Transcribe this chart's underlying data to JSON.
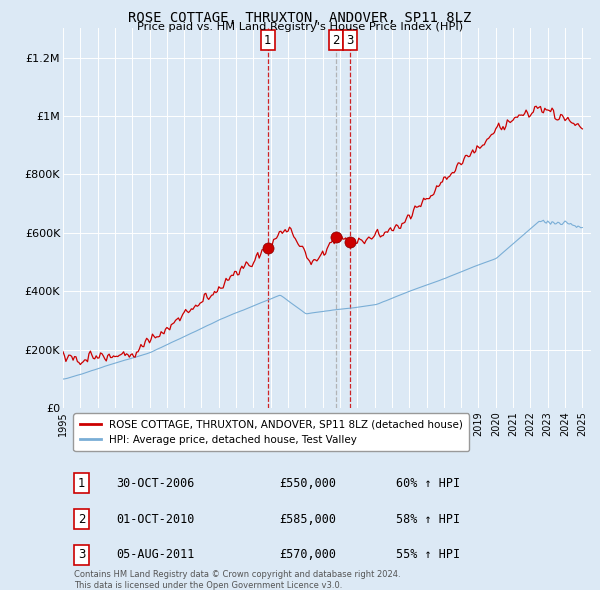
{
  "title": "ROSE COTTAGE, THRUXTON, ANDOVER, SP11 8LZ",
  "subtitle": "Price paid vs. HM Land Registry's House Price Index (HPI)",
  "background_color": "#dce9f5",
  "plot_bg_color": "#dce9f5",
  "bottom_bg_color": "#ffffff",
  "ylim": [
    0,
    1300000
  ],
  "yticks": [
    0,
    200000,
    400000,
    600000,
    800000,
    1000000,
    1200000
  ],
  "ytick_labels": [
    "£0",
    "£200K",
    "£400K",
    "£600K",
    "£800K",
    "£1M",
    "£1.2M"
  ],
  "x_start_year": 1995,
  "x_end_year": 2025,
  "legend_line1": "ROSE COTTAGE, THRUXTON, ANDOVER, SP11 8LZ (detached house)",
  "legend_line2": "HPI: Average price, detached house, Test Valley",
  "legend_color1": "#cc0000",
  "legend_color2": "#7aaed6",
  "transactions": [
    {
      "id": 1,
      "date": "30-OCT-2006",
      "year": 2006.83,
      "price": 550000,
      "hpi_pct": "60%",
      "vline_style": "red_dash"
    },
    {
      "id": 2,
      "date": "01-OCT-2010",
      "year": 2010.75,
      "price": 585000,
      "hpi_pct": "58%",
      "vline_style": "grey_dash"
    },
    {
      "id": 3,
      "date": "05-AUG-2011",
      "year": 2011.58,
      "price": 570000,
      "hpi_pct": "55%",
      "vline_style": "red_dash"
    }
  ],
  "footnote1": "Contains HM Land Registry data © Crown copyright and database right 2024.",
  "footnote2": "This data is licensed under the Open Government Licence v3.0.",
  "hpi_line_color": "#7aaed6",
  "price_line_color": "#cc0000",
  "vline_color_red": "#cc0000",
  "vline_color_grey": "#aaaaaa"
}
